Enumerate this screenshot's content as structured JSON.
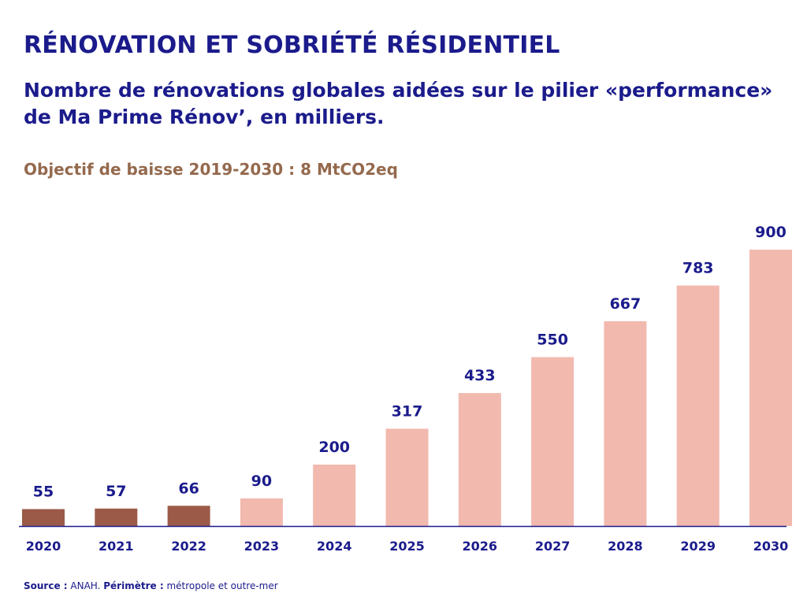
{
  "header": {
    "title": "RÉNOVATION ET SOBRIÉTÉ RÉSIDENTIEL",
    "subtitle": "Nombre de rénovations globales aidées sur le pilier «performance» de Ma Prime Rénov’, en milliers.",
    "objective": "Objectif de baisse 2019-2030 : 8 MtCO2eq"
  },
  "footer": {
    "source_label": "Source :",
    "source_value": " ANAH. ",
    "scope_label": "Périmètre :",
    "scope_value": " métropole et outre-mer"
  },
  "colors": {
    "title": "#1b1b8c",
    "objective": "#94694d",
    "actual_bar": "#9b5a48",
    "target_bar": "#f2b9ae",
    "axis": "#1b1b8c"
  },
  "chart_data": {
    "type": "bar",
    "title": "Nombre de rénovations globales aidées sur le pilier «performance» de Ma Prime Rénov’, en milliers.",
    "xlabel": "",
    "ylabel": "",
    "ylim": [
      0,
      900
    ],
    "grid": false,
    "categories": [
      "2020",
      "2021",
      "2022",
      "2023",
      "2024",
      "2025",
      "2026",
      "2027",
      "2028",
      "2029",
      "2030"
    ],
    "values": [
      55,
      57,
      66,
      90,
      200,
      317,
      433,
      550,
      667,
      783,
      900
    ],
    "labels": [
      "55",
      "57",
      "66",
      "90",
      "200",
      "317",
      "433",
      "550",
      "667",
      "783",
      "900"
    ],
    "bar_kind": [
      "actual",
      "actual",
      "actual",
      "target",
      "target",
      "target",
      "target",
      "target",
      "target",
      "target",
      "target"
    ]
  }
}
